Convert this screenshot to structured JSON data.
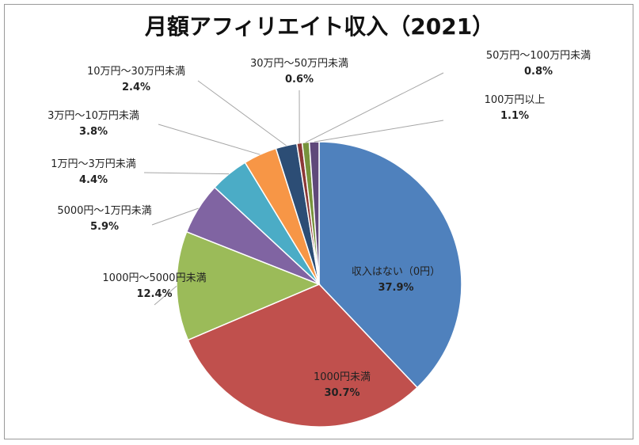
{
  "chart_data": {
    "type": "pie",
    "title": "月額アフィリエイト収入（2021）",
    "slices": [
      {
        "label": "収入はない（0円）",
        "value": 37.9,
        "value_label": "37.9%",
        "color": "#4f81bd"
      },
      {
        "label": "1000円未満",
        "value": 30.7,
        "value_label": "30.7%",
        "color": "#c0504d"
      },
      {
        "label": "1000円～5000円未満",
        "value": 12.4,
        "value_label": "12.4%",
        "color": "#9bbb59"
      },
      {
        "label": "5000円～1万円未満",
        "value": 5.9,
        "value_label": "5.9%",
        "color": "#8064a2"
      },
      {
        "label": "1万円～3万円未満",
        "value": 4.4,
        "value_label": "4.4%",
        "color": "#4bacc6"
      },
      {
        "label": "3万円～10万円未満",
        "value": 3.8,
        "value_label": "3.8%",
        "color": "#f79646"
      },
      {
        "label": "10万円～30万円未満",
        "value": 2.4,
        "value_label": "2.4%",
        "color": "#2c4d75"
      },
      {
        "label": "30万円～50万円未満",
        "value": 0.6,
        "value_label": "0.6%",
        "color": "#8c3836"
      },
      {
        "label": "50万円～100万円未満",
        "value": 0.8,
        "value_label": "0.8%",
        "color": "#77933c"
      },
      {
        "label": "100万円以上",
        "value": 1.1,
        "value_label": "1.1%",
        "color": "#5f497a"
      }
    ]
  }
}
